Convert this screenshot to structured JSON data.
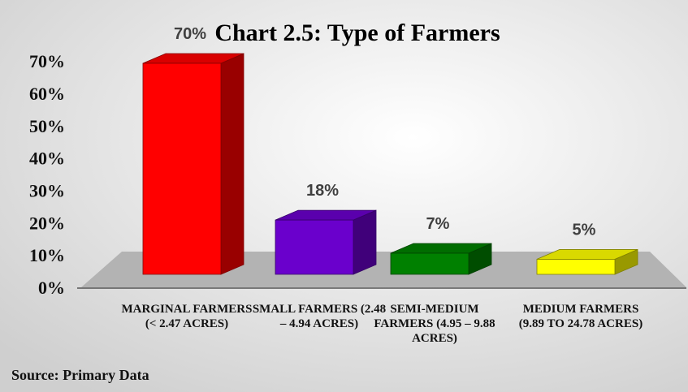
{
  "chart_data": {
    "type": "bar3d",
    "title": "Chart 2.5: Type of Farmers",
    "categories": [
      "MARGINAL FARMERS  (< 2.47 ACRES)",
      "SMALL FARMERS (2.48 – 4.94 ACRES)",
      "SEMI-MEDIUM FARMERS (4.95 – 9.88 ACRES)",
      "MEDIUM FARMERS (9.89 TO 24.78 ACRES)"
    ],
    "values": [
      70,
      18,
      7,
      5
    ],
    "value_labels": [
      "70%",
      "18%",
      "7%",
      "5%"
    ],
    "colors": [
      "#ff0000",
      "#6a00cc",
      "#008000",
      "#ffff00"
    ],
    "ylim": [
      0,
      70
    ],
    "yticks": [
      {
        "value": 0,
        "label": "0%"
      },
      {
        "value": 10,
        "label": "10%"
      },
      {
        "value": 20,
        "label": "20%"
      },
      {
        "value": 30,
        "label": "30%"
      },
      {
        "value": 40,
        "label": "40%"
      },
      {
        "value": 50,
        "label": "50%"
      },
      {
        "value": 60,
        "label": "60%"
      },
      {
        "value": 70,
        "label": "70%"
      }
    ],
    "source": "Source: Primary Data"
  }
}
